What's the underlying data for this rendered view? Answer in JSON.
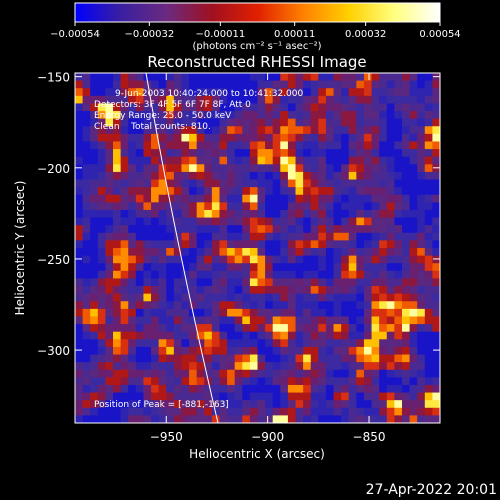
{
  "chart_data": {
    "type": "heatmap",
    "title": "Reconstructed RHESSI Image",
    "xlabel": "Heliocentric X (arcsec)",
    "ylabel": "Heliocentric Y (arcsec)",
    "xlim": [
      -995,
      -815
    ],
    "ylim": [
      -340,
      -148
    ],
    "x_ticks": [
      -950,
      -900,
      -850
    ],
    "x_tick_labels": [
      "−950",
      "−900",
      "−850"
    ],
    "y_ticks": [
      -150,
      -200,
      -250,
      -300
    ],
    "y_tick_labels": [
      "−150",
      "−200",
      "−250",
      "−300"
    ],
    "colorbar": {
      "min": -0.00054,
      "max": 0.00054,
      "ticks": [
        -0.00054,
        -0.00032,
        -0.00011,
        0.00011,
        0.00032,
        0.00054
      ],
      "tick_labels": [
        "−0.00054",
        "−0.00032",
        "−0.00011",
        "0.00011",
        "0.00032",
        "0.00054"
      ],
      "units": "(photons cm⁻² s⁻¹ asec⁻²)",
      "colors": [
        "#0000ff",
        "#3a1fa0",
        "#6a2a80",
        "#a01020",
        "#e02000",
        "#ff8000",
        "#ffd000",
        "#ffff80",
        "#ffffff"
      ]
    },
    "annotations": {
      "time_range": "9-Jun-2003 10:40:24.000 to 10:41:32.000",
      "detectors": "Detectors: 3F 4F 5F 6F 7F 8F, Att 0",
      "energy_range": "Energy Range: 25.0 - 50.0 keV",
      "method_counts": "Clean    Total counts: 810.",
      "peak_position": "Position of Peak = [-881,-163]"
    },
    "limb_color": "#ffffff"
  },
  "footer": {
    "timestamp": "27-Apr-2022 20:01"
  }
}
